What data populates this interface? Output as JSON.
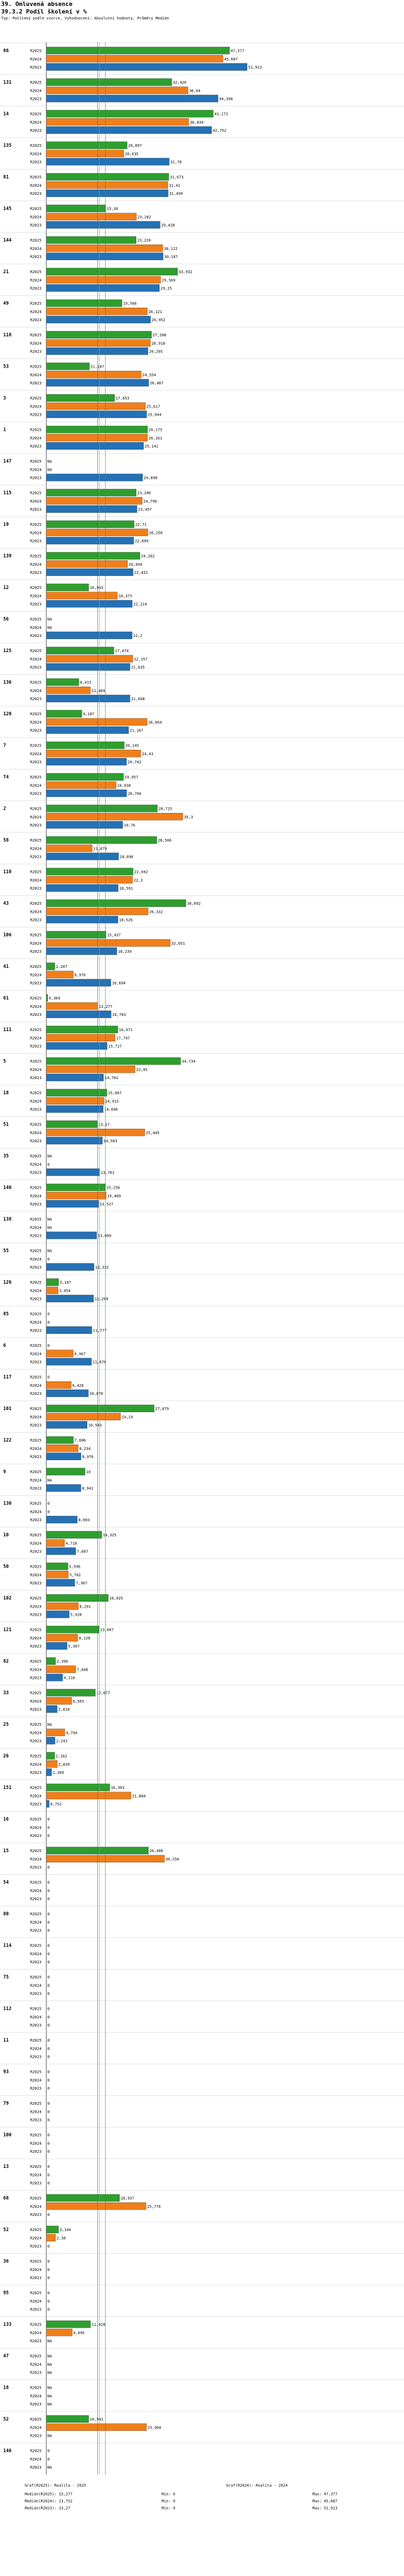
{
  "header": {
    "title": "39. Omluvená absence",
    "subtitle_main": "39.3.2 Podíl školení v %",
    "description": "Typ: Počítaný podle vzorce, Vyhodnocení: Absolutní hodnoty, Průměry Medián"
  },
  "chart_data": {
    "type": "bar",
    "orientation": "horizontal",
    "title": "39.3.2 Podíl školení v %",
    "xlim": [
      0,
      100
    ],
    "series": [
      {
        "name": "R2025",
        "color": "#2e9e2e"
      },
      {
        "name": "R2024",
        "color": "#f07f1a"
      },
      {
        "name": "R2023",
        "color": "#2471b5"
      }
    ],
    "na_label": "NA",
    "reference_lines": [
      {
        "name": "Median R2025",
        "value": 15.277,
        "color": "#2e9e2e"
      },
      {
        "name": "Median R2024",
        "value": 13.752,
        "color": "#f07f1a"
      },
      {
        "name": "Median R2023",
        "value": 13.27,
        "color": "#2471b5"
      }
    ],
    "groups": [
      {
        "id": "86",
        "values": [
          47.377,
          45.687,
          51.913
        ]
      },
      {
        "id": "131",
        "values": [
          32.426,
          36.64,
          44.398
        ]
      },
      {
        "id": "14",
        "values": [
          43.173,
          36.834,
          42.752
        ]
      },
      {
        "id": "135",
        "values": [
          20.897,
          20.035,
          31.78
        ]
      },
      {
        "id": "81",
        "values": [
          31.673,
          31.41,
          31.499
        ]
      },
      {
        "id": "145",
        "values": [
          15.36,
          23.282,
          29.428
        ]
      },
      {
        "id": "144",
        "values": [
          23.226,
          30.122,
          30.187
        ]
      },
      {
        "id": "21",
        "values": [
          33.932,
          29.569,
          29.25
        ]
      },
      {
        "id": "49",
        "values": [
          19.566,
          26.121,
          26.952
        ]
      },
      {
        "id": "118",
        "values": [
          27.208,
          26.918,
          26.295
        ]
      },
      {
        "id": "53",
        "values": [
          11.147,
          24.554,
          26.467
        ]
      },
      {
        "id": "3",
        "values": [
          17.653,
          25.617,
          25.944
        ]
      },
      {
        "id": "1",
        "values": [
          26.175,
          26.161,
          25.141
        ]
      },
      {
        "id": "147",
        "values": [
          null,
          null,
          24.898
        ]
      },
      {
        "id": "115",
        "values": [
          23.246,
          24.796,
          23.457
        ]
      },
      {
        "id": "19",
        "values": [
          22.71,
          26.256,
          22.609
        ]
      },
      {
        "id": "139",
        "values": [
          24.202,
          20.994,
          22.432
        ]
      },
      {
        "id": "12",
        "values": [
          10.943,
          18.375,
          22.214
        ]
      },
      {
        "id": "56",
        "values": [
          null,
          null,
          22.2
        ]
      },
      {
        "id": "125",
        "values": [
          17.474,
          22.357,
          21.635
        ]
      },
      {
        "id": "136",
        "values": [
          8.415,
          11.404,
          21.648
        ]
      },
      {
        "id": "120",
        "values": [
          9.187,
          26.064,
          21.267
        ]
      },
      {
        "id": "7",
        "values": [
          20.145,
          24.43,
          20.742
        ]
      },
      {
        "id": "74",
        "values": [
          19.957,
          18.038,
          20.766
        ]
      },
      {
        "id": "2",
        "values": [
          28.725,
          35.3,
          19.76
        ]
      },
      {
        "id": "58",
        "values": [
          28.566,
          11.879,
          18.696
        ]
      },
      {
        "id": "110",
        "values": [
          22.442,
          22.3,
          18.591
        ]
      },
      {
        "id": "43",
        "values": [
          36.092,
          26.332,
          18.526
        ]
      },
      {
        "id": "106",
        "values": [
          15.437,
          32.051,
          18.239
        ]
      },
      {
        "id": "41",
        "values": [
          2.207,
          6.976,
          16.694
        ]
      },
      {
        "id": "61",
        "values": [
          0.369,
          13.277,
          16.763
        ]
      },
      {
        "id": "111",
        "values": [
          18.471,
          17.797,
          15.727
        ]
      },
      {
        "id": "5",
        "values": [
          34.734,
          22.95,
          14.781
        ]
      },
      {
        "id": "18",
        "values": [
          15.667,
          14.915,
          14.696
        ]
      },
      {
        "id": "51",
        "values": [
          13.17,
          25.445,
          14.503
        ]
      },
      {
        "id": "35",
        "values": [
          null,
          0,
          13.781
        ]
      },
      {
        "id": "140",
        "values": [
          15.256,
          15.469,
          13.527
        ]
      },
      {
        "id": "138",
        "values": [
          null,
          null,
          13.009
        ]
      },
      {
        "id": "55",
        "values": [
          null,
          0,
          12.332
        ]
      },
      {
        "id": "126",
        "values": [
          3.187,
          3.054,
          12.204
        ]
      },
      {
        "id": "85",
        "values": [
          0,
          0,
          11.777
        ]
      },
      {
        "id": "6",
        "values": [
          0,
          6.967,
          11.676
        ]
      },
      {
        "id": "117",
        "values": [
          0,
          6.428,
          10.878
        ]
      },
      {
        "id": "101",
        "values": [
          27.879,
          19.19,
          10.543
        ]
      },
      {
        "id": "122",
        "values": [
          7.006,
          8.234,
          8.976
        ]
      },
      {
        "id": "9",
        "values": [
          10,
          null,
          8.941
        ]
      },
      {
        "id": "130",
        "values": [
          0,
          0,
          8.003
        ]
      },
      {
        "id": "10",
        "values": [
          14.325,
          4.718,
          7.607
        ]
      },
      {
        "id": "50",
        "values": [
          5.596,
          5.702,
          7.367
        ]
      },
      {
        "id": "102",
        "values": [
          16.025,
          8.291,
          5.928
        ]
      },
      {
        "id": "121",
        "values": [
          13.607,
          8.128,
          5.367
        ]
      },
      {
        "id": "82",
        "values": [
          2.396,
          7.606,
          4.216
        ]
      },
      {
        "id": "33",
        "values": [
          12.677,
          6.565,
          2.818
        ]
      },
      {
        "id": "25",
        "values": [
          null,
          4.794,
          2.243
        ]
      },
      {
        "id": "26",
        "values": [
          2.162,
          2.839,
          1.369
        ]
      },
      {
        "id": "151",
        "values": [
          16.393,
          21.884,
          0.752
        ]
      },
      {
        "id": "16",
        "values": [
          0,
          0,
          0
        ]
      },
      {
        "id": "15",
        "values": [
          26.406,
          30.556,
          0
        ]
      },
      {
        "id": "54",
        "values": [
          0,
          0,
          0
        ]
      },
      {
        "id": "80",
        "values": [
          0,
          0,
          0
        ]
      },
      {
        "id": "114",
        "values": [
          0,
          0,
          0
        ]
      },
      {
        "id": "75",
        "values": [
          0,
          0,
          0
        ]
      },
      {
        "id": "112",
        "values": [
          0,
          0,
          0
        ]
      },
      {
        "id": "11",
        "values": [
          0,
          0,
          0
        ]
      },
      {
        "id": "93",
        "values": [
          0,
          0,
          0
        ]
      },
      {
        "id": "79",
        "values": [
          0,
          0,
          0
        ]
      },
      {
        "id": "100",
        "values": [
          0,
          0,
          0
        ]
      },
      {
        "id": "13",
        "values": [
          0,
          0,
          0
        ]
      },
      {
        "id": "68",
        "values": [
          18.937,
          25.776,
          0
        ]
      },
      {
        "id": "52",
        "values": [
          3.144,
          2.38,
          0
        ]
      },
      {
        "id": "36",
        "values": [
          0,
          0,
          0
        ]
      },
      {
        "id": "95",
        "values": [
          0,
          0,
          0
        ]
      },
      {
        "id": "133",
        "values": [
          11.428,
          6.695,
          null
        ]
      },
      {
        "id": "47",
        "values": [
          null,
          null,
          null
        ]
      },
      {
        "id": "18",
        "values": [
          null,
          null,
          null
        ]
      },
      {
        "id": "52",
        "values": [
          10.941,
          25.904,
          null
        ]
      },
      {
        "id": "146",
        "values": [
          0,
          0,
          null
        ]
      }
    ]
  },
  "footer": {
    "legend_left_1": "Graf(R2025): Realita - 2025",
    "legend_right_1": "Graf(R2024): Realita - 2024",
    "rows": [
      {
        "label": "Medián(R2025): 15,277",
        "min": "Min: 0",
        "max": "Max: 47,377"
      },
      {
        "label": "Medián(R2024): 13,752",
        "min": "Min: 0",
        "max": "Max: 45,687"
      },
      {
        "label": "Medián(R2023): 13,27",
        "min": "Min: 0",
        "max": "Max: 51,913"
      }
    ]
  }
}
